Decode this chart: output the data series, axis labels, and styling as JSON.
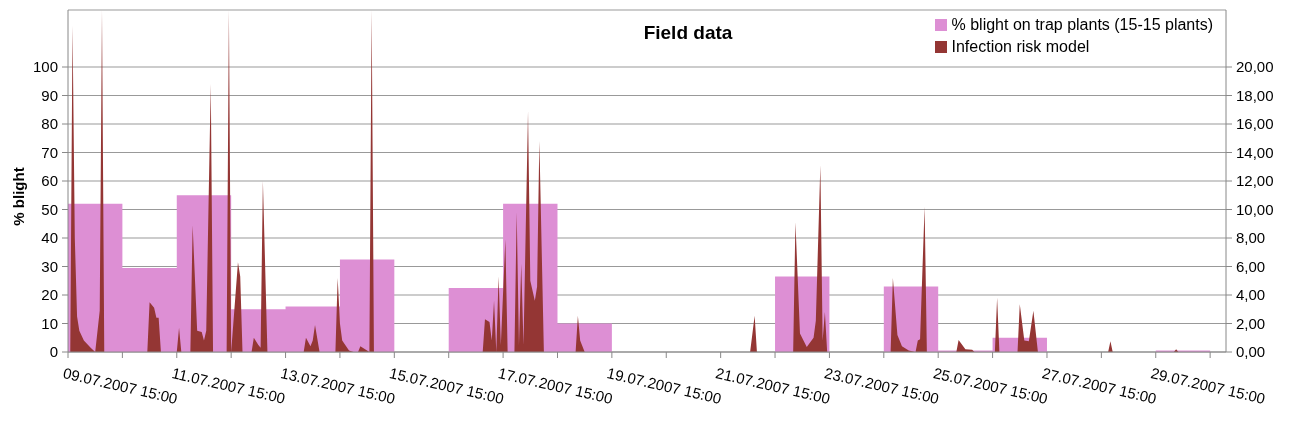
{
  "chart_data": {
    "type": "area",
    "title": "Field data",
    "ylabel": "% blight",
    "legend": "top right",
    "grid": "y",
    "xlim": [
      "2007-07-09T15:00",
      "2007-07-30T22:00"
    ],
    "xticks": [
      {
        "value": "2007-07-09T15:00",
        "label": "09.07.2007 15:00"
      },
      {
        "value": "2007-07-10T15:00",
        "label": null
      },
      {
        "value": "2007-07-11T15:00",
        "label": "11.07.2007 15:00"
      },
      {
        "value": "2007-07-12T15:00",
        "label": null
      },
      {
        "value": "2007-07-13T15:00",
        "label": "13.07.2007 15:00"
      },
      {
        "value": "2007-07-14T15:00",
        "label": null
      },
      {
        "value": "2007-07-15T15:00",
        "label": "15.07.2007 15:00"
      },
      {
        "value": "2007-07-16T15:00",
        "label": null
      },
      {
        "value": "2007-07-17T15:00",
        "label": "17.07.2007 15:00"
      },
      {
        "value": "2007-07-18T15:00",
        "label": null
      },
      {
        "value": "2007-07-19T15:00",
        "label": "19.07.2007 15:00"
      },
      {
        "value": "2007-07-20T15:00",
        "label": null
      },
      {
        "value": "2007-07-21T15:00",
        "label": "21.07.2007 15:00"
      },
      {
        "value": "2007-07-22T15:00",
        "label": null
      },
      {
        "value": "2007-07-23T15:00",
        "label": "23.07.2007 15:00"
      },
      {
        "value": "2007-07-24T15:00",
        "label": null
      },
      {
        "value": "2007-07-25T15:00",
        "label": "25.07.2007 15:00"
      },
      {
        "value": "2007-07-26T15:00",
        "label": null
      },
      {
        "value": "2007-07-27T15:00",
        "label": "27.07.2007 15:00"
      },
      {
        "value": "2007-07-28T15:00",
        "label": null
      },
      {
        "value": "2007-07-29T15:00",
        "label": "29.07.2007 15:00"
      },
      {
        "value": "2007-07-30T15:00",
        "label": null
      }
    ],
    "ylim": [
      0,
      120
    ],
    "yticks": [
      0,
      10,
      20,
      30,
      40,
      50,
      60,
      70,
      80,
      90,
      100
    ],
    "y2lim": [
      0,
      24
    ],
    "y2ticks": [
      {
        "value": 0,
        "label": "0,00"
      },
      {
        "value": 2,
        "label": "2,00"
      },
      {
        "value": 4,
        "label": "4,00"
      },
      {
        "value": 6,
        "label": "6,00"
      },
      {
        "value": 8,
        "label": "8,00"
      },
      {
        "value": 10,
        "label": "10,00"
      },
      {
        "value": 12,
        "label": "12,00"
      },
      {
        "value": 14,
        "label": "14,00"
      },
      {
        "value": 16,
        "label": "16,00"
      },
      {
        "value": 18,
        "label": "18,00"
      },
      {
        "value": 20,
        "label": "20,00"
      }
    ],
    "series": [
      {
        "name": "% blight on trap plants (15-15 plants)",
        "color": "#dd8fd4",
        "x": [
          "2007-07-09T15:00",
          "2007-07-10T15:00",
          "2007-07-10T15:00",
          "2007-07-11T15:00",
          "2007-07-11T15:00",
          "2007-07-12T15:00",
          "2007-07-12T15:00",
          "2007-07-13T15:00",
          "2007-07-13T15:00",
          "2007-07-14T15:00",
          "2007-07-14T15:00",
          "2007-07-15T15:00",
          "2007-07-15T15:00",
          "2007-07-16T15:00",
          "2007-07-16T15:00",
          "2007-07-17T15:00",
          "2007-07-17T15:00",
          "2007-07-18T15:00",
          "2007-07-18T15:00",
          "2007-07-19T15:00",
          "2007-07-19T15:00",
          "2007-07-20T15:00",
          "2007-07-20T15:00",
          "2007-07-21T15:00",
          "2007-07-21T15:00",
          "2007-07-22T15:00",
          "2007-07-22T15:00",
          "2007-07-23T15:00",
          "2007-07-23T15:00",
          "2007-07-24T15:00",
          "2007-07-24T15:00",
          "2007-07-25T15:00",
          "2007-07-25T15:00",
          "2007-07-26T15:00",
          "2007-07-26T15:00",
          "2007-07-27T15:00",
          "2007-07-27T15:00",
          "2007-07-28T15:00",
          "2007-07-28T15:00",
          "2007-07-29T15:00",
          "2007-07-29T15:00",
          "2007-07-30T15:00"
        ],
        "values": [
          52,
          52,
          29.5,
          29.5,
          55,
          55,
          15,
          15,
          16,
          16,
          32.5,
          32.5,
          0,
          0,
          22.5,
          22.5,
          52,
          52,
          10,
          10,
          0,
          0,
          0,
          0,
          0,
          0,
          26.5,
          26.5,
          0,
          0,
          23,
          23,
          0.5,
          0.5,
          5,
          5,
          0,
          0,
          0,
          0,
          0.5,
          0.5
        ]
      },
      {
        "name": "Infection risk model",
        "axis": "y2",
        "color": "#943634",
        "x": [
          "2007-07-09T15:00",
          "2007-07-09T16:00",
          "2007-07-09T17:00",
          "2007-07-09T18:00",
          "2007-07-09T19:00",
          "2007-07-09T20:00",
          "2007-07-09T22:00",
          "2007-07-10T01:00",
          "2007-07-10T03:00",
          "2007-07-10T05:00",
          "2007-07-10T06:00",
          "2007-07-10T07:00",
          "2007-07-11T02:00",
          "2007-07-11T03:00",
          "2007-07-11T05:00",
          "2007-07-11T06:00",
          "2007-07-11T07:00",
          "2007-07-11T08:00",
          "2007-07-11T15:00",
          "2007-07-11T16:00",
          "2007-07-11T17:00",
          "2007-07-11T21:00",
          "2007-07-11T22:00",
          "2007-07-12T00:00",
          "2007-07-12T02:00",
          "2007-07-12T03:00",
          "2007-07-12T04:00",
          "2007-07-12T06:00",
          "2007-07-12T07:00",
          "2007-07-12T13:00",
          "2007-07-12T14:00",
          "2007-07-12T15:00",
          "2007-07-12T18:00",
          "2007-07-12T19:00",
          "2007-07-12T20:00",
          "2007-07-13T00:00",
          "2007-07-13T01:00",
          "2007-07-13T03:00",
          "2007-07-13T04:00",
          "2007-07-13T05:00",
          "2007-07-13T07:00",
          "2007-07-13T23:00",
          "2007-07-14T00:00",
          "2007-07-14T02:00",
          "2007-07-14T03:00",
          "2007-07-14T04:00",
          "2007-07-14T06:00",
          "2007-07-14T13:00",
          "2007-07-14T14:00",
          "2007-07-14T15:00",
          "2007-07-14T16:00",
          "2007-07-14T19:00",
          "2007-07-14T21:00",
          "2007-07-14T23:00",
          "2007-07-15T00:00",
          "2007-07-15T04:00",
          "2007-07-15T05:00",
          "2007-07-15T06:00",
          "2007-07-17T06:00",
          "2007-07-17T07:00",
          "2007-07-17T09:00",
          "2007-07-17T10:00",
          "2007-07-17T11:00",
          "2007-07-17T12:00",
          "2007-07-17T13:00",
          "2007-07-17T14:00",
          "2007-07-17T16:00",
          "2007-07-17T17:00",
          "2007-07-17T20:00",
          "2007-07-17T21:00",
          "2007-07-17T22:00",
          "2007-07-17T23:00",
          "2007-07-18T00:00",
          "2007-07-18T02:00",
          "2007-07-18T03:00",
          "2007-07-18T05:00",
          "2007-07-18T06:00",
          "2007-07-18T07:00",
          "2007-07-18T09:00",
          "2007-07-18T23:00",
          "2007-07-19T00:00",
          "2007-07-19T01:00",
          "2007-07-19T03:00",
          "2007-07-22T04:00",
          "2007-07-22T06:00",
          "2007-07-22T07:00",
          "2007-07-22T23:00",
          "2007-07-23T00:00",
          "2007-07-23T02:00",
          "2007-07-23T05:00",
          "2007-07-23T08:00",
          "2007-07-23T09:00",
          "2007-07-23T11:00",
          "2007-07-23T12:00",
          "2007-07-23T13:00",
          "2007-07-23T14:00",
          "2007-07-24T18:00",
          "2007-07-24T19:00",
          "2007-07-24T21:00",
          "2007-07-24T23:00",
          "2007-07-25T02:00",
          "2007-07-25T05:00",
          "2007-07-25T06:00",
          "2007-07-25T07:00",
          "2007-07-25T09:00",
          "2007-07-25T10:00",
          "2007-07-25T23:00",
          "2007-07-26T00:00",
          "2007-07-26T03:00",
          "2007-07-26T06:00",
          "2007-07-26T07:00",
          "2007-07-26T16:00",
          "2007-07-26T17:00",
          "2007-07-26T18:00",
          "2007-07-27T02:00",
          "2007-07-27T03:00",
          "2007-07-27T05:00",
          "2007-07-27T07:00",
          "2007-07-27T09:00",
          "2007-07-27T11:00",
          "2007-07-28T18:00",
          "2007-07-28T19:00",
          "2007-07-28T20:00",
          "2007-07-29T23:00",
          "2007-07-30T00:00",
          "2007-07-30T01:00",
          "2007-07-30T15:00"
        ],
        "values": [
          0,
          0,
          22.9,
          8,
          2.5,
          1.5,
          0.8,
          0.3,
          0,
          2.9,
          24,
          0,
          0,
          3.5,
          3.1,
          2.4,
          2.4,
          0,
          0,
          1.7,
          0,
          0,
          8.9,
          1.5,
          1.4,
          0.8,
          1.5,
          18.8,
          0,
          0,
          24,
          0,
          6.3,
          5.3,
          0,
          0,
          1,
          0.5,
          0.3,
          12,
          0,
          0,
          1,
          0.4,
          0.8,
          1.9,
          0,
          0,
          5.2,
          2,
          0.8,
          0.1,
          0,
          0,
          0.4,
          0,
          24,
          0,
          0,
          2.3,
          2.1,
          0.8,
          3.6,
          0,
          5.3,
          0.5,
          7.9,
          0,
          0,
          9.8,
          0.5,
          6.2,
          0.5,
          16.9,
          5,
          3.6,
          4.6,
          14.8,
          0,
          0,
          2.55,
          0.8,
          0,
          0,
          2.55,
          0,
          0,
          9.1,
          1.3,
          0.35,
          1,
          2.2,
          13.1,
          0.8,
          2.8,
          0,
          0,
          5.2,
          1.2,
          0.4,
          0.1,
          0,
          0.8,
          0.9,
          10.2,
          0,
          0,
          0.85,
          0.2,
          0.15,
          0,
          0,
          3.8,
          0,
          0,
          3.35,
          0.8,
          0.75,
          2.9,
          0,
          0,
          0.75,
          0,
          0,
          0.2,
          0,
          0
        ]
      }
    ]
  }
}
